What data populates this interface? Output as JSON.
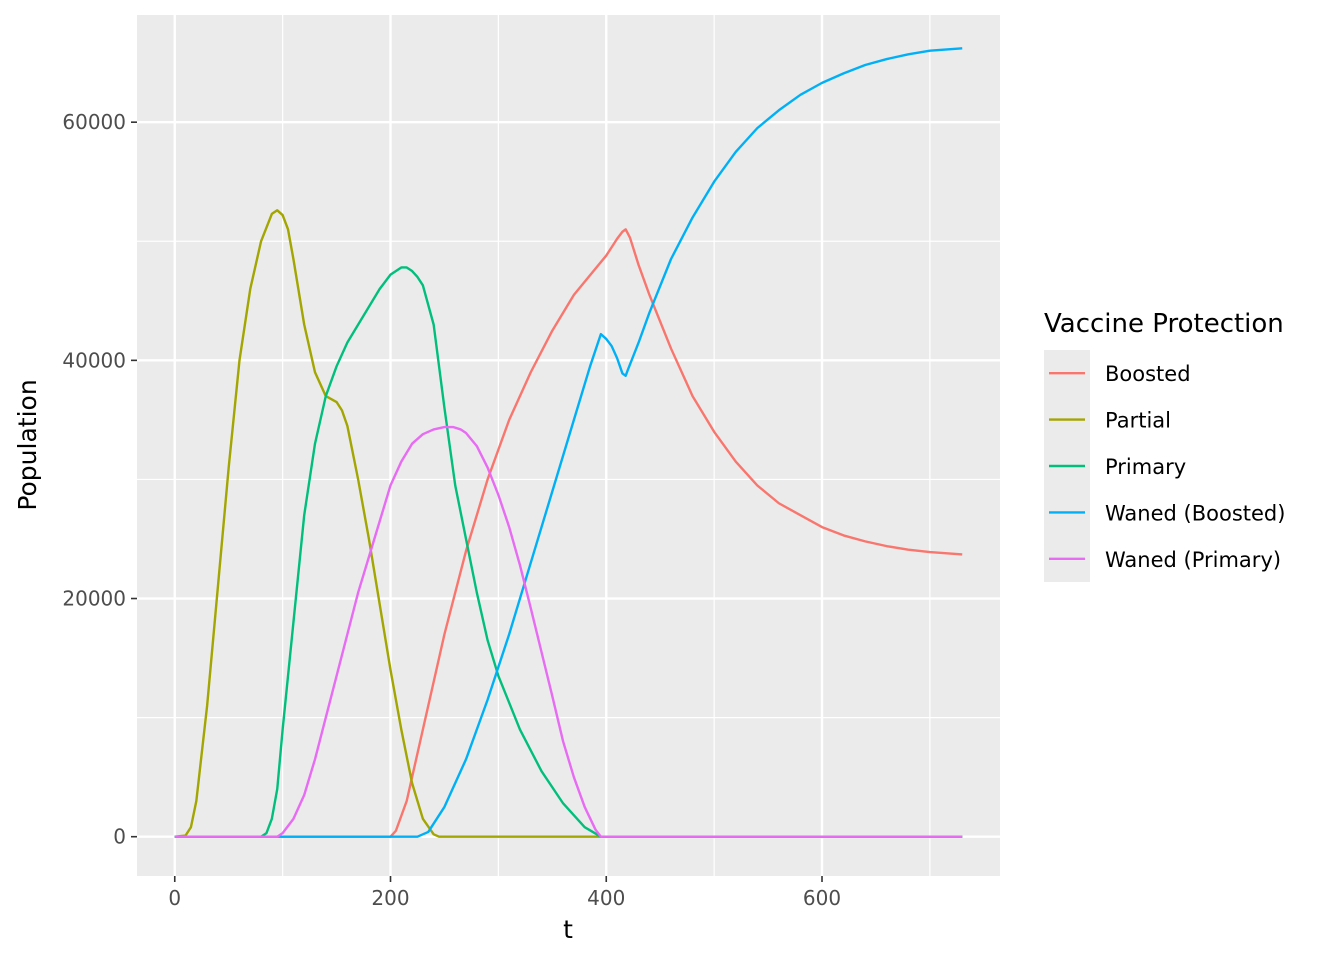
{
  "chart_data": {
    "type": "line",
    "title": "",
    "xlabel": "t",
    "ylabel": "Population",
    "xlim": [
      -35,
      765
    ],
    "ylim": [
      -3300,
      69000
    ],
    "x_ticks": [
      0,
      200,
      400,
      600
    ],
    "y_ticks": [
      0,
      20000,
      40000,
      60000
    ],
    "x_tick_labels": [
      "0",
      "200",
      "400",
      "600"
    ],
    "y_tick_labels": [
      "0",
      "20000",
      "40000",
      "60000"
    ],
    "grid": true,
    "panel_background": "#ebebeb",
    "legend": {
      "title": "Vaccine Protection",
      "placement": "right"
    },
    "series": [
      {
        "name": "Boosted",
        "color": "#f8766d",
        "x": [
          0,
          200,
          205,
          215,
          230,
          250,
          270,
          290,
          310,
          330,
          350,
          370,
          390,
          400,
          405,
          410,
          415,
          418,
          422,
          430,
          440,
          460,
          480,
          500,
          520,
          540,
          560,
          580,
          600,
          620,
          640,
          660,
          680,
          700,
          730
        ],
        "y": [
          0,
          0,
          500,
          3000,
          9000,
          17000,
          24000,
          30000,
          35000,
          39000,
          42500,
          45500,
          47700,
          48800,
          49500,
          50200,
          50800,
          51000,
          50300,
          48000,
          45500,
          41000,
          37000,
          34000,
          31500,
          29500,
          28000,
          27000,
          26000,
          25300,
          24800,
          24400,
          24100,
          23900,
          23700
        ]
      },
      {
        "name": "Partial",
        "color": "#a3a500",
        "x": [
          0,
          10,
          15,
          20,
          30,
          40,
          50,
          60,
          70,
          80,
          90,
          95,
          100,
          105,
          110,
          120,
          130,
          140,
          150,
          155,
          160,
          170,
          180,
          190,
          200,
          210,
          220,
          230,
          240,
          245,
          730
        ],
        "y": [
          0,
          100,
          800,
          3000,
          11000,
          21000,
          31000,
          40000,
          46000,
          50000,
          52300,
          52600,
          52200,
          51000,
          48500,
          43000,
          39000,
          37000,
          36500,
          35800,
          34500,
          30000,
          25000,
          19500,
          14000,
          9000,
          4500,
          1500,
          200,
          0,
          0
        ]
      },
      {
        "name": "Primary",
        "color": "#00bf7d",
        "x": [
          0,
          80,
          85,
          90,
          95,
          100,
          110,
          120,
          130,
          140,
          150,
          160,
          170,
          180,
          190,
          200,
          210,
          215,
          220,
          225,
          230,
          240,
          250,
          260,
          270,
          280,
          290,
          300,
          320,
          340,
          360,
          380,
          395,
          730
        ],
        "y": [
          0,
          0,
          300,
          1500,
          4000,
          9000,
          18000,
          27000,
          33000,
          37000,
          39500,
          41500,
          43000,
          44500,
          46000,
          47200,
          47800,
          47800,
          47500,
          47000,
          46300,
          43000,
          36000,
          29500,
          25000,
          20500,
          16500,
          13500,
          9000,
          5500,
          2800,
          800,
          0,
          0
        ]
      },
      {
        "name": "Waned (Boosted)",
        "color": "#00b0f6",
        "x": [
          0,
          225,
          235,
          250,
          270,
          290,
          310,
          330,
          350,
          370,
          385,
          395,
          400,
          405,
          410,
          415,
          418,
          420,
          430,
          440,
          460,
          480,
          500,
          520,
          540,
          560,
          580,
          600,
          620,
          640,
          660,
          680,
          700,
          730
        ],
        "y": [
          0,
          0,
          400,
          2500,
          6500,
          11500,
          17000,
          23000,
          29000,
          35000,
          39500,
          42200,
          41800,
          41200,
          40200,
          38900,
          38700,
          39200,
          41500,
          44000,
          48500,
          52000,
          55000,
          57500,
          59500,
          61000,
          62300,
          63300,
          64100,
          64800,
          65300,
          65700,
          66000,
          66200
        ]
      },
      {
        "name": "Waned (Primary)",
        "color": "#e76bf3",
        "x": [
          0,
          95,
          100,
          110,
          120,
          130,
          140,
          150,
          160,
          170,
          180,
          190,
          200,
          210,
          220,
          230,
          240,
          250,
          258,
          265,
          270,
          280,
          290,
          300,
          310,
          320,
          330,
          340,
          350,
          360,
          370,
          380,
          390,
          395,
          730
        ],
        "y": [
          0,
          0,
          300,
          1500,
          3500,
          6500,
          10000,
          13500,
          17000,
          20500,
          23500,
          26500,
          29500,
          31500,
          33000,
          33800,
          34200,
          34400,
          34400,
          34200,
          33900,
          32800,
          31000,
          28700,
          26000,
          22800,
          19200,
          15500,
          11800,
          8000,
          5000,
          2500,
          600,
          0,
          0
        ]
      }
    ]
  }
}
